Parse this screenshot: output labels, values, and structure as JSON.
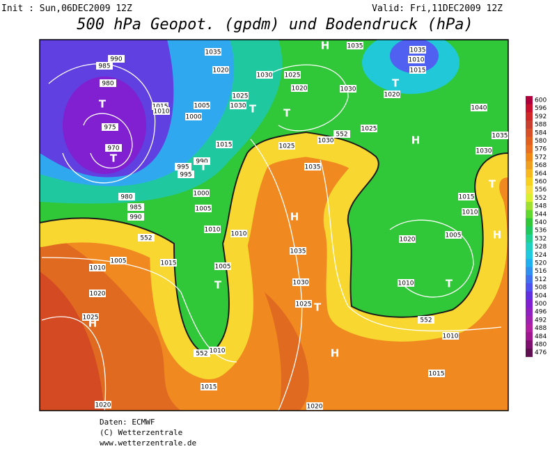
{
  "header": {
    "init": "Init : Sun,06DEC2009 12Z",
    "valid": "Valid: Fri,11DEC2009 12Z",
    "title": "500 hPa Geopot. (gpdm) und Bodendruck (hPa)"
  },
  "legend": {
    "ticks": [
      600,
      596,
      592,
      588,
      584,
      580,
      576,
      572,
      568,
      564,
      560,
      556,
      552,
      548,
      544,
      540,
      536,
      532,
      528,
      524,
      520,
      516,
      512,
      508,
      504,
      500,
      496,
      492,
      488,
      484,
      480,
      476
    ],
    "colors": [
      "#b0003c",
      "#c8102e",
      "#d02828",
      "#c84030",
      "#d85028",
      "#e06020",
      "#e87020",
      "#f08818",
      "#f0a020",
      "#f8b820",
      "#f8d020",
      "#f8e040",
      "#d8f030",
      "#a0e030",
      "#60d830",
      "#30c838",
      "#20c860",
      "#20d090",
      "#20d0c0",
      "#20c8e0",
      "#20b0f0",
      "#3090f0",
      "#4070f0",
      "#5050f0",
      "#6030e0",
      "#8020d0",
      "#9020c0",
      "#a020b0",
      "#b020a0",
      "#a01890",
      "#801070",
      "#601050"
    ]
  },
  "map": {
    "labels": [
      "980",
      "975",
      "970",
      "985",
      "990",
      "1015",
      "1010",
      "1005",
      "1000",
      "995",
      "995",
      "990",
      "980",
      "985",
      "990",
      "1000",
      "1005",
      "1010",
      "1015",
      "1035",
      "1020",
      "1025",
      "1030",
      "1030",
      "1025",
      "1020",
      "1030",
      "1025",
      "1030",
      "1035",
      "1025",
      "1040",
      "1035",
      "1030",
      "1035",
      "1010",
      "1015",
      "1020",
      "1035",
      "1015",
      "1010",
      "1005",
      "1020",
      "1010",
      "1010",
      "1005",
      "1010",
      "1005",
      "1015",
      "1020",
      "1025",
      "1030",
      "1025",
      "1035",
      "1010",
      "1015",
      "1020",
      "1020",
      "1015",
      "1010",
      "552",
      "552",
      "552",
      "552"
    ],
    "centers": [
      "T",
      "T",
      "T",
      "T",
      "T",
      "T",
      "T",
      "T",
      "T",
      "T",
      "H",
      "H",
      "H",
      "H",
      "H",
      "H"
    ]
  },
  "footer": [
    "Daten: ECMWF",
    "(C) Wetterzentrale",
    "www.wetterzentrale.de"
  ]
}
